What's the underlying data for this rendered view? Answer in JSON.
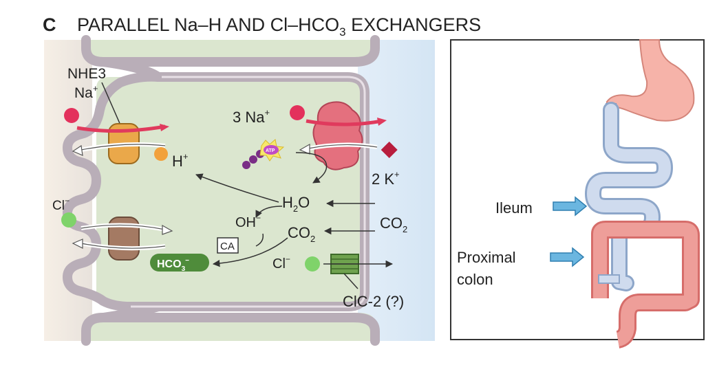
{
  "heading": {
    "panel_letter": "C",
    "title_main": "PARALLEL Na–H AND Cl–HCO",
    "title_sub": "3",
    "title_end": " EXCHANGERS"
  },
  "cell_diagram": {
    "nhe3": "NHE3",
    "na_left": "Na",
    "na_left_sup": "+",
    "h_plus": "H",
    "h_plus_sup": "+",
    "cl_left": "Cl",
    "cl_left_sup": "−",
    "three_na": "3 Na",
    "three_na_sup": "+",
    "atp": "ATP",
    "two_k": "2 K",
    "two_k_sup": "+",
    "h2o_h": "H",
    "h2o_sub": "2",
    "h2o_o": "O",
    "co2_right": "CO",
    "co2_right_sub": "2",
    "oh": "OH",
    "oh_sup": "−",
    "co2_mid": "CO",
    "co2_mid_sub": "2",
    "ca": "CA",
    "hco3": "HCO",
    "hco3_sub": "3",
    "hco3_sup": "−",
    "cl_right": "Cl",
    "cl_right_sup": "−",
    "clc2": "ClC-2 (?)"
  },
  "gut_diagram": {
    "ileum": "Ileum",
    "proximal_line1": "Proximal",
    "proximal_line2": "colon"
  },
  "colors": {
    "cell_fill": "#dbe6cf",
    "lumen_blue": "#d9e7f3",
    "membrane": "#b9aeb8",
    "na_red": "#e3315c",
    "h_orange": "#f2a13b",
    "cl_green": "#7fd36a",
    "pump_red": "#e4707e",
    "arrow_blue": "#6bb6e0",
    "colon": "#e28b86",
    "intestine_blue": "#c9d6ec",
    "stomach": "#f6b3a9"
  }
}
